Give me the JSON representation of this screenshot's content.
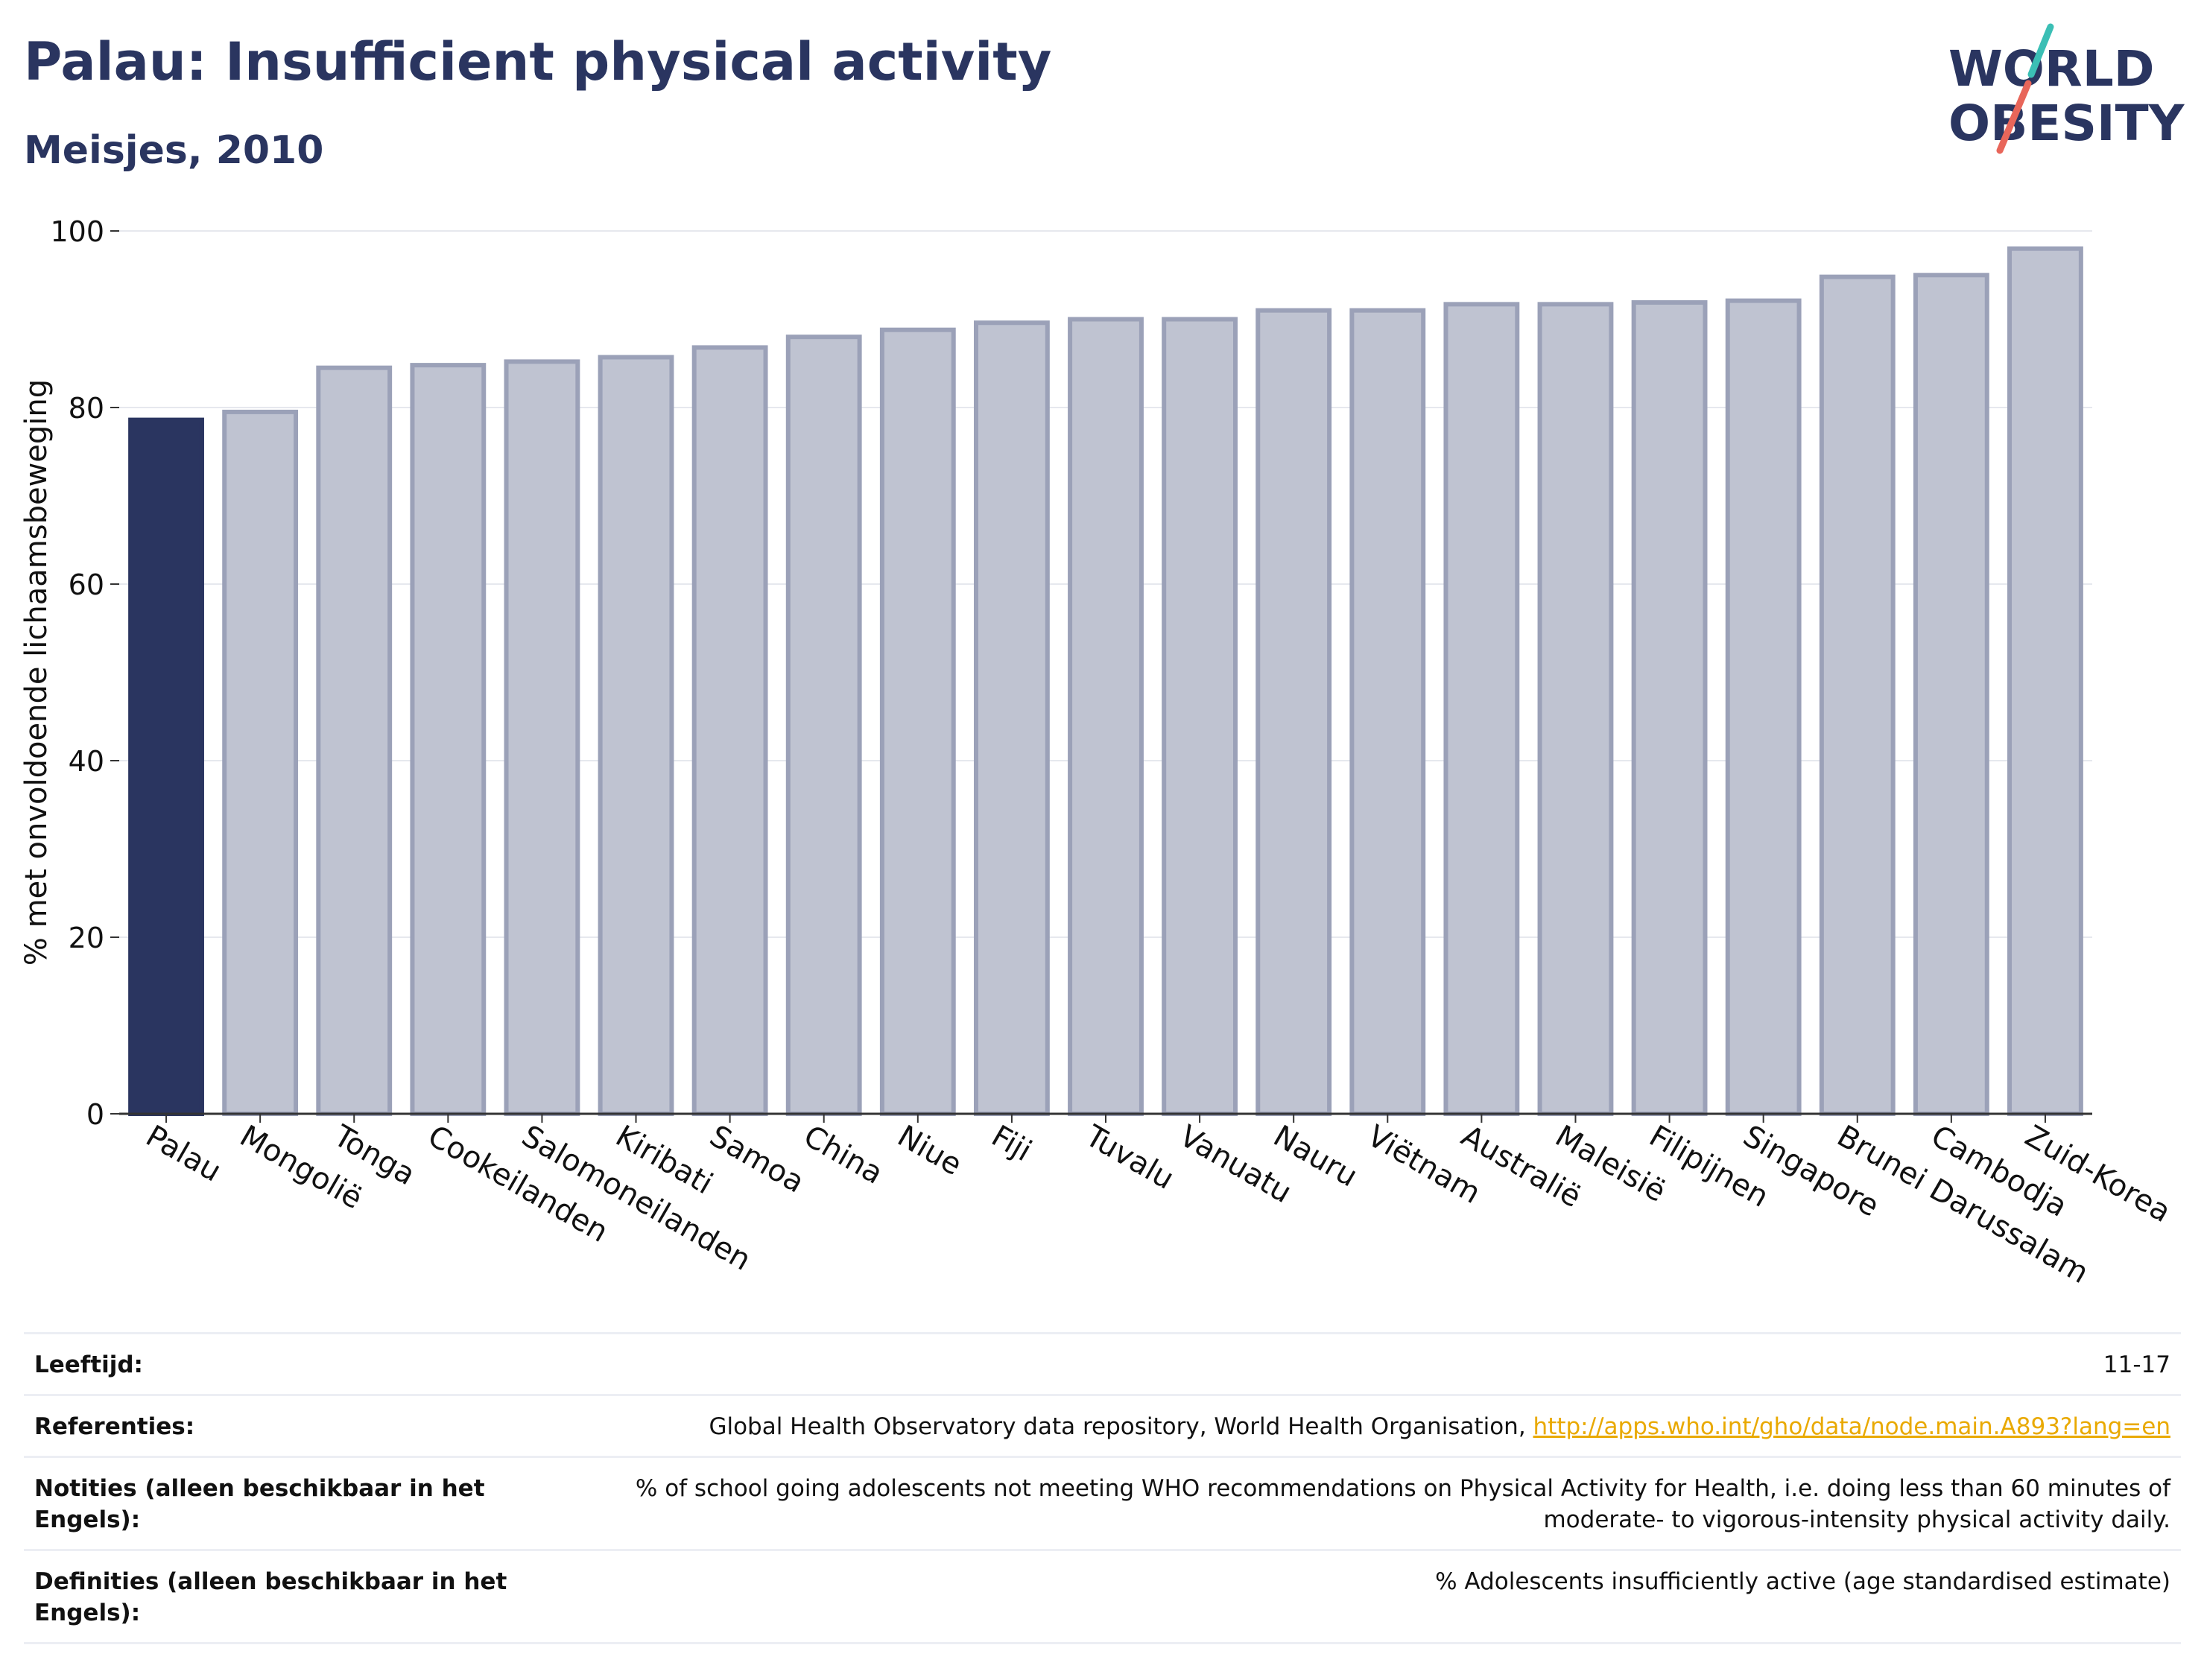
{
  "header": {
    "title": "Palau: Insufficient physical activity",
    "subtitle": "Meisjes, 2010"
  },
  "logo": {
    "line1": "WORLD",
    "line2": "OBESITY",
    "accent_teal": "#3bbfb5",
    "accent_red": "#e8665a"
  },
  "colors": {
    "highlight": "#2a3560",
    "bar_fill": "#bfc3d1",
    "bar_stroke": "#9ba1b8",
    "grid": "#e6e8ee",
    "text": "#2a3560"
  },
  "chart_data": {
    "type": "bar",
    "title": "Palau: Insufficient physical activity",
    "subtitle": "Meisjes, 2010",
    "ylabel": "% met onvoldoende lichaamsbeweging",
    "xlabel": "",
    "ylim": [
      0,
      100
    ],
    "yticks": [
      0,
      20,
      40,
      60,
      80,
      100
    ],
    "grid": true,
    "highlight": "Palau",
    "categories": [
      "Palau",
      "Mongolië",
      "Tonga",
      "Cookeilanden",
      "Salomoneilanden",
      "Kiribati",
      "Samoa",
      "China",
      "Niue",
      "Fiji",
      "Tuvalu",
      "Vanuatu",
      "Nauru",
      "Viëtnam",
      "Australië",
      "Maleisië",
      "Filipijnen",
      "Singapore",
      "Brunei Darussalam",
      "Cambodja",
      "Zuid-Korea"
    ],
    "values": [
      78.6,
      79.5,
      84.5,
      84.8,
      85.2,
      85.7,
      86.8,
      88.0,
      88.8,
      89.6,
      90.0,
      90.0,
      91.0,
      91.0,
      91.7,
      91.7,
      91.9,
      92.1,
      94.8,
      95.0,
      98.0
    ]
  },
  "info": {
    "age_label": "Leeftijd:",
    "age_value": "11-17",
    "refs_label": "Referenties:",
    "refs_text": "Global Health Observatory data repository, World Health Organisation, ",
    "refs_link": "http://apps.who.int/gho/data/node.main.A893?lang=en",
    "notes_label": "Notities (alleen beschikbaar in het Engels):",
    "notes_value": "% of school going adolescents not meeting WHO recommendations on Physical Activity for Health, i.e. doing less than 60 minutes of moderate- to vigorous-intensity physical activity daily.",
    "defs_label": "Definities (alleen beschikbaar in het Engels):",
    "defs_value": "% Adolescents insufficiently active (age standardised estimate)"
  }
}
